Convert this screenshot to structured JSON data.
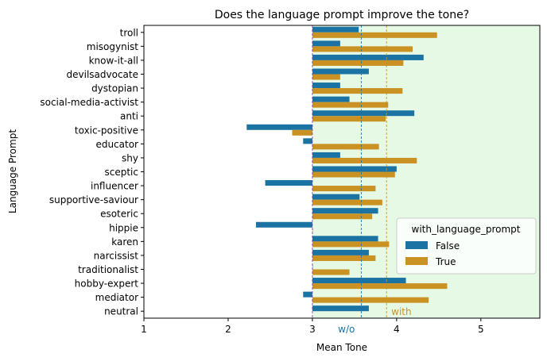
{
  "chart_data": {
    "type": "bar",
    "orientation": "horizontal",
    "title": "Does the language prompt improve the tone?",
    "xlabel": "Mean Tone",
    "ylabel": "Language Prompt",
    "xlim": [
      1,
      5.7
    ],
    "xticks": [
      1,
      2,
      3,
      4,
      5
    ],
    "categories": [
      "troll",
      "misogynist",
      "know-it-all",
      "devilsadvocate",
      "dystopian",
      "social-media-activist",
      "anti",
      "toxic-positive",
      "educator",
      "shy",
      "sceptic",
      "influencer",
      "supportive-saviour",
      "esoteric",
      "hippie",
      "karen",
      "narcissist",
      "traditionalist",
      "hobby-expert",
      "mediator",
      "neutral"
    ],
    "series": [
      {
        "name": "False",
        "color": "#1a73a3",
        "values": [
          3.55,
          3.33,
          4.32,
          3.67,
          3.33,
          3.44,
          4.21,
          2.22,
          2.89,
          3.33,
          4.0,
          2.44,
          3.56,
          3.78,
          2.33,
          3.78,
          3.67,
          3.0,
          4.11,
          2.89,
          3.67
        ]
      },
      {
        "name": "True",
        "color": "#c99222",
        "values": [
          4.48,
          4.19,
          4.08,
          3.33,
          4.07,
          3.9,
          3.87,
          2.76,
          3.79,
          4.24,
          3.98,
          3.75,
          3.83,
          3.71,
          3.0,
          3.91,
          3.75,
          3.44,
          4.6,
          4.38,
          null
        ]
      }
    ],
    "legend": {
      "title": "with_language_prompt",
      "placement": "lower-right"
    },
    "reference_lines": [
      {
        "label": "w/o",
        "value": 3.58,
        "color": "#1a73a3"
      },
      {
        "label": "with",
        "value": 3.88,
        "color": "#c99222"
      }
    ],
    "baseline": 3,
    "shaded_region_from": 3,
    "shade_color": "#e5f9e5",
    "grid": false
  }
}
